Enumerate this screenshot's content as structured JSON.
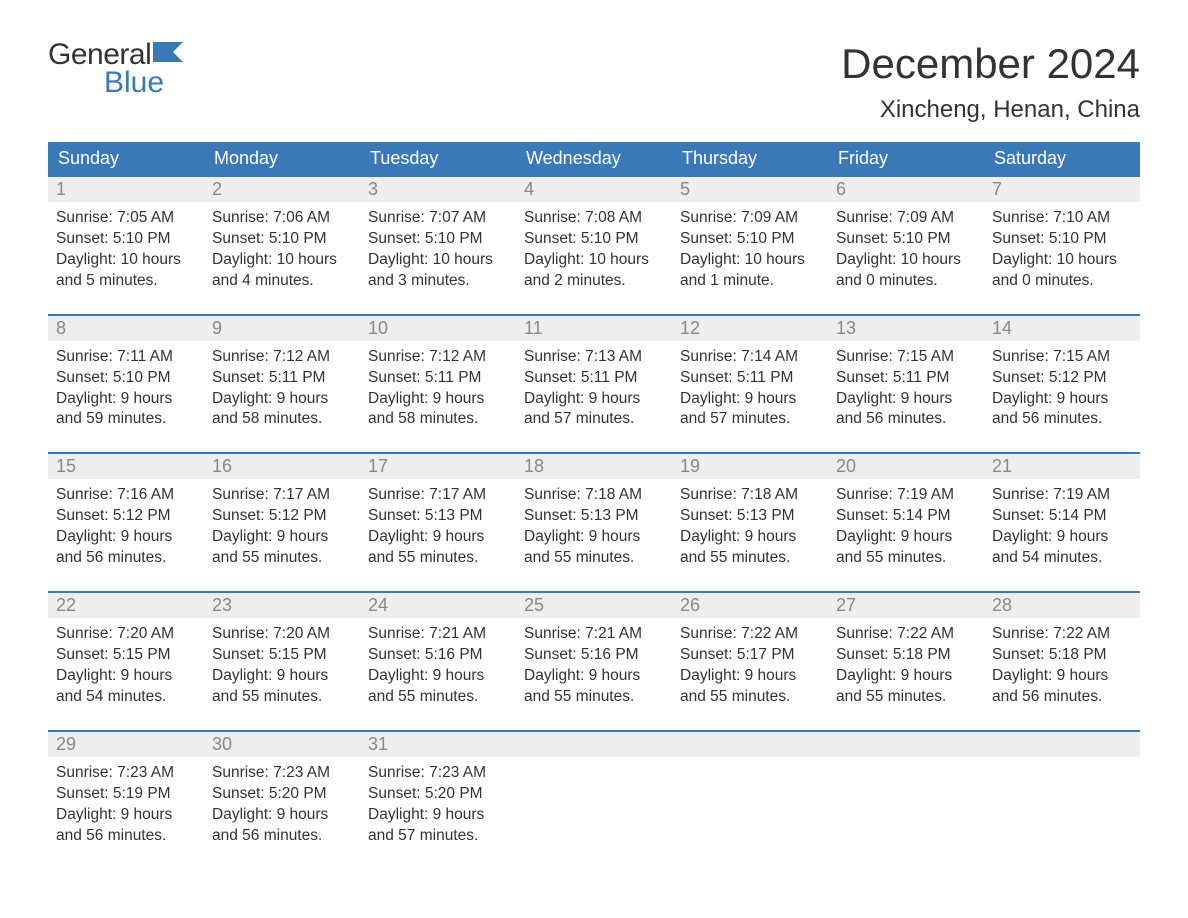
{
  "brand": {
    "top": "General",
    "bottom": "Blue",
    "icon_color": "#3a79b7",
    "text_color": "#333333",
    "accent_color": "#3a79b7"
  },
  "title": "December 2024",
  "location": "Xincheng, Henan, China",
  "colors": {
    "header_bg": "#3a79b7",
    "header_text": "#ffffff",
    "daynum_bg": "#eeeeee",
    "daynum_text": "#888888",
    "rule": "#3a79b7",
    "body_text": "#333333",
    "page_bg": "#ffffff"
  },
  "typography": {
    "title_fontsize": 42,
    "location_fontsize": 24,
    "header_fontsize": 18,
    "daynum_fontsize": 18,
    "body_fontsize": 15.5
  },
  "day_labels": [
    "Sunday",
    "Monday",
    "Tuesday",
    "Wednesday",
    "Thursday",
    "Friday",
    "Saturday"
  ],
  "weeks": [
    [
      {
        "n": "1",
        "sr": "Sunrise: 7:05 AM",
        "ss": "Sunset: 5:10 PM",
        "d1": "Daylight: 10 hours",
        "d2": "and 5 minutes."
      },
      {
        "n": "2",
        "sr": "Sunrise: 7:06 AM",
        "ss": "Sunset: 5:10 PM",
        "d1": "Daylight: 10 hours",
        "d2": "and 4 minutes."
      },
      {
        "n": "3",
        "sr": "Sunrise: 7:07 AM",
        "ss": "Sunset: 5:10 PM",
        "d1": "Daylight: 10 hours",
        "d2": "and 3 minutes."
      },
      {
        "n": "4",
        "sr": "Sunrise: 7:08 AM",
        "ss": "Sunset: 5:10 PM",
        "d1": "Daylight: 10 hours",
        "d2": "and 2 minutes."
      },
      {
        "n": "5",
        "sr": "Sunrise: 7:09 AM",
        "ss": "Sunset: 5:10 PM",
        "d1": "Daylight: 10 hours",
        "d2": "and 1 minute."
      },
      {
        "n": "6",
        "sr": "Sunrise: 7:09 AM",
        "ss": "Sunset: 5:10 PM",
        "d1": "Daylight: 10 hours",
        "d2": "and 0 minutes."
      },
      {
        "n": "7",
        "sr": "Sunrise: 7:10 AM",
        "ss": "Sunset: 5:10 PM",
        "d1": "Daylight: 10 hours",
        "d2": "and 0 minutes."
      }
    ],
    [
      {
        "n": "8",
        "sr": "Sunrise: 7:11 AM",
        "ss": "Sunset: 5:10 PM",
        "d1": "Daylight: 9 hours",
        "d2": "and 59 minutes."
      },
      {
        "n": "9",
        "sr": "Sunrise: 7:12 AM",
        "ss": "Sunset: 5:11 PM",
        "d1": "Daylight: 9 hours",
        "d2": "and 58 minutes."
      },
      {
        "n": "10",
        "sr": "Sunrise: 7:12 AM",
        "ss": "Sunset: 5:11 PM",
        "d1": "Daylight: 9 hours",
        "d2": "and 58 minutes."
      },
      {
        "n": "11",
        "sr": "Sunrise: 7:13 AM",
        "ss": "Sunset: 5:11 PM",
        "d1": "Daylight: 9 hours",
        "d2": "and 57 minutes."
      },
      {
        "n": "12",
        "sr": "Sunrise: 7:14 AM",
        "ss": "Sunset: 5:11 PM",
        "d1": "Daylight: 9 hours",
        "d2": "and 57 minutes."
      },
      {
        "n": "13",
        "sr": "Sunrise: 7:15 AM",
        "ss": "Sunset: 5:11 PM",
        "d1": "Daylight: 9 hours",
        "d2": "and 56 minutes."
      },
      {
        "n": "14",
        "sr": "Sunrise: 7:15 AM",
        "ss": "Sunset: 5:12 PM",
        "d1": "Daylight: 9 hours",
        "d2": "and 56 minutes."
      }
    ],
    [
      {
        "n": "15",
        "sr": "Sunrise: 7:16 AM",
        "ss": "Sunset: 5:12 PM",
        "d1": "Daylight: 9 hours",
        "d2": "and 56 minutes."
      },
      {
        "n": "16",
        "sr": "Sunrise: 7:17 AM",
        "ss": "Sunset: 5:12 PM",
        "d1": "Daylight: 9 hours",
        "d2": "and 55 minutes."
      },
      {
        "n": "17",
        "sr": "Sunrise: 7:17 AM",
        "ss": "Sunset: 5:13 PM",
        "d1": "Daylight: 9 hours",
        "d2": "and 55 minutes."
      },
      {
        "n": "18",
        "sr": "Sunrise: 7:18 AM",
        "ss": "Sunset: 5:13 PM",
        "d1": "Daylight: 9 hours",
        "d2": "and 55 minutes."
      },
      {
        "n": "19",
        "sr": "Sunrise: 7:18 AM",
        "ss": "Sunset: 5:13 PM",
        "d1": "Daylight: 9 hours",
        "d2": "and 55 minutes."
      },
      {
        "n": "20",
        "sr": "Sunrise: 7:19 AM",
        "ss": "Sunset: 5:14 PM",
        "d1": "Daylight: 9 hours",
        "d2": "and 55 minutes."
      },
      {
        "n": "21",
        "sr": "Sunrise: 7:19 AM",
        "ss": "Sunset: 5:14 PM",
        "d1": "Daylight: 9 hours",
        "d2": "and 54 minutes."
      }
    ],
    [
      {
        "n": "22",
        "sr": "Sunrise: 7:20 AM",
        "ss": "Sunset: 5:15 PM",
        "d1": "Daylight: 9 hours",
        "d2": "and 54 minutes."
      },
      {
        "n": "23",
        "sr": "Sunrise: 7:20 AM",
        "ss": "Sunset: 5:15 PM",
        "d1": "Daylight: 9 hours",
        "d2": "and 55 minutes."
      },
      {
        "n": "24",
        "sr": "Sunrise: 7:21 AM",
        "ss": "Sunset: 5:16 PM",
        "d1": "Daylight: 9 hours",
        "d2": "and 55 minutes."
      },
      {
        "n": "25",
        "sr": "Sunrise: 7:21 AM",
        "ss": "Sunset: 5:16 PM",
        "d1": "Daylight: 9 hours",
        "d2": "and 55 minutes."
      },
      {
        "n": "26",
        "sr": "Sunrise: 7:22 AM",
        "ss": "Sunset: 5:17 PM",
        "d1": "Daylight: 9 hours",
        "d2": "and 55 minutes."
      },
      {
        "n": "27",
        "sr": "Sunrise: 7:22 AM",
        "ss": "Sunset: 5:18 PM",
        "d1": "Daylight: 9 hours",
        "d2": "and 55 minutes."
      },
      {
        "n": "28",
        "sr": "Sunrise: 7:22 AM",
        "ss": "Sunset: 5:18 PM",
        "d1": "Daylight: 9 hours",
        "d2": "and 56 minutes."
      }
    ],
    [
      {
        "n": "29",
        "sr": "Sunrise: 7:23 AM",
        "ss": "Sunset: 5:19 PM",
        "d1": "Daylight: 9 hours",
        "d2": "and 56 minutes."
      },
      {
        "n": "30",
        "sr": "Sunrise: 7:23 AM",
        "ss": "Sunset: 5:20 PM",
        "d1": "Daylight: 9 hours",
        "d2": "and 56 minutes."
      },
      {
        "n": "31",
        "sr": "Sunrise: 7:23 AM",
        "ss": "Sunset: 5:20 PM",
        "d1": "Daylight: 9 hours",
        "d2": "and 57 minutes."
      },
      {
        "empty": true
      },
      {
        "empty": true
      },
      {
        "empty": true
      },
      {
        "empty": true
      }
    ]
  ]
}
